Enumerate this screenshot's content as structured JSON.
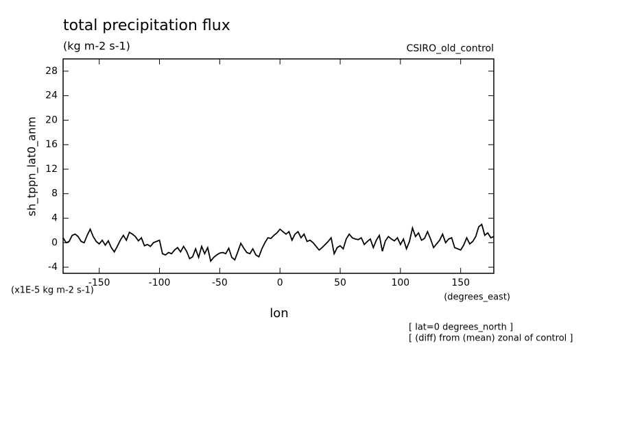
{
  "chart_data": {
    "type": "line",
    "title": "total precipitation flux",
    "subtitle": "(kg m-2 s-1)",
    "run_label": "CSIRO_old_control",
    "y_label": "sh_tppn_lat0_anm",
    "y_units": "(x1E-5 kg m-2 s-1)",
    "x_units": "(degrees_east)",
    "x_label": "lon",
    "notes": [
      "[ lat=0 degrees_north ]",
      "[ (diff) from (mean) zonal of control ]"
    ],
    "xlim": [
      -180,
      177.5
    ],
    "ylim": [
      -5,
      30
    ],
    "xticks": [
      -150,
      -100,
      -50,
      0,
      50,
      100,
      150
    ],
    "yticks": [
      -4,
      0,
      4,
      8,
      12,
      16,
      20,
      24,
      28
    ],
    "color": "#000000",
    "x": [
      -180,
      -177.5,
      -175,
      -172.5,
      -170,
      -167.5,
      -165,
      -162.5,
      -160,
      -157.5,
      -155,
      -152.5,
      -150,
      -147.5,
      -145,
      -142.5,
      -140,
      -137.5,
      -135,
      -132.5,
      -130,
      -127.5,
      -125,
      -122.5,
      -120,
      -117.5,
      -115,
      -112.5,
      -110,
      -107.5,
      -105,
      -102.5,
      -100,
      -97.5,
      -95,
      -92.5,
      -90,
      -87.5,
      -85,
      -82.5,
      -80,
      -77.5,
      -75,
      -72.5,
      -70,
      -67.5,
      -65,
      -62.5,
      -60,
      -57.5,
      -55,
      -52.5,
      -50,
      -47.5,
      -45,
      -42.5,
      -40,
      -37.5,
      -35,
      -32.5,
      -30,
      -27.5,
      -25,
      -22.5,
      -20,
      -17.5,
      -15,
      -12.5,
      -10,
      -7.5,
      -5,
      -2.5,
      0,
      2.5,
      5,
      7.5,
      10,
      12.5,
      15,
      17.5,
      20,
      22.5,
      25,
      27.5,
      30,
      32.5,
      35,
      37.5,
      40,
      42.5,
      45,
      47.5,
      50,
      52.5,
      55,
      57.5,
      60,
      62.5,
      65,
      67.5,
      70,
      72.5,
      75,
      77.5,
      80,
      82.5,
      85,
      87.5,
      90,
      92.5,
      95,
      97.5,
      100,
      102.5,
      105,
      107.5,
      110,
      112.5,
      115,
      117.5,
      120,
      122.5,
      125,
      127.5,
      130,
      132.5,
      135,
      137.5,
      140,
      142.5,
      145,
      147.5,
      150,
      152.5,
      155,
      157.5,
      160,
      162.5,
      165,
      167.5,
      170,
      172.5,
      175,
      177.5
    ],
    "values": [
      0.8,
      0,
      0.2,
      1.2,
      1.4,
      1.0,
      0.2,
      0,
      1.2,
      2.2,
      1.0,
      0.2,
      -0.2,
      0.4,
      -0.4,
      0.3,
      -0.8,
      -1.5,
      -0.6,
      0.4,
      1.2,
      0.4,
      1.7,
      1.4,
      1.0,
      0.3,
      0.8,
      -0.5,
      -0.3,
      -0.6,
      0,
      0.2,
      0.4,
      -1.8,
      -2.0,
      -1.6,
      -1.8,
      -1.2,
      -0.8,
      -1.5,
      -0.6,
      -1.4,
      -2.6,
      -2.3,
      -1.0,
      -2.4,
      -0.6,
      -1.8,
      -0.8,
      -3.0,
      -2.4,
      -2.0,
      -1.7,
      -1.6,
      -1.8,
      -0.9,
      -2.4,
      -2.8,
      -1.5,
      -0.1,
      -0.9,
      -1.6,
      -1.8,
      -1.0,
      -2.0,
      -2.3,
      -1.0,
      0,
      0.8,
      0.7,
      1.2,
      1.6,
      2.2,
      1.8,
      1.4,
      1.8,
      0.4,
      1.4,
      1.8,
      0.8,
      1.4,
      0.2,
      0.4,
      0,
      -0.6,
      -1.2,
      -0.8,
      -0.3,
      0.2,
      0.8,
      -1.8,
      -0.8,
      -0.5,
      -1.0,
      0.6,
      1.4,
      0.8,
      0.6,
      0.5,
      0.8,
      -0.3,
      0.2,
      0.6,
      -0.8,
      0.4,
      1.2,
      -1.4,
      0.3,
      1.0,
      0.6,
      0.3,
      0.8,
      -0.3,
      0.6,
      -1.0,
      0.2,
      2.4,
      1.0,
      1.6,
      0.4,
      0.7,
      1.8,
      0.6,
      -0.8,
      -0.2,
      0.4,
      1.4,
      0,
      0.6,
      0.8,
      -0.8,
      -1.0,
      -1.2,
      -0.4,
      0.8,
      -0.2,
      0.2,
      1.0,
      2.6,
      3.0,
      1.2,
      1.6,
      0.8,
      1.0
    ]
  }
}
